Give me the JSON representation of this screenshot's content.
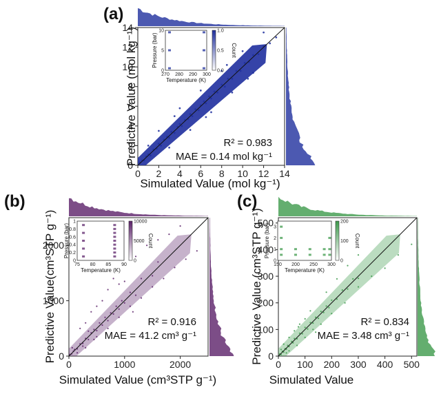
{
  "chart_data": [
    {
      "panel_label": "(a)",
      "type": "scatter",
      "xlabel": "Simulated Value (mol kg⁻¹)",
      "ylabel": "Predictive Value (mol kg⁻¹)",
      "xlim": [
        0,
        14
      ],
      "ylim": [
        0,
        14
      ],
      "xticks": [
        0,
        2,
        4,
        6,
        8,
        10,
        12,
        14
      ],
      "yticks": [
        0,
        2,
        4,
        6,
        8,
        10,
        12,
        14
      ],
      "color": "#1f2f9e",
      "r2_text": "R² = 0.983",
      "mae_text": "MAE = 0.14 mol kg⁻¹",
      "points": [
        [
          0.2,
          0.3
        ],
        [
          0.4,
          0.5
        ],
        [
          0.6,
          0.5
        ],
        [
          0.8,
          0.9
        ],
        [
          1.0,
          1.1
        ],
        [
          1.2,
          1.0
        ],
        [
          1.5,
          1.6
        ],
        [
          1.8,
          1.7
        ],
        [
          2.0,
          2.2
        ],
        [
          2.2,
          2.0
        ],
        [
          2.5,
          2.6
        ],
        [
          2.8,
          2.9
        ],
        [
          3.0,
          2.8
        ],
        [
          3.2,
          3.4
        ],
        [
          3.5,
          3.3
        ],
        [
          3.8,
          3.9
        ],
        [
          4.0,
          4.2
        ],
        [
          4.2,
          4.0
        ],
        [
          4.5,
          4.6
        ],
        [
          4.8,
          4.7
        ],
        [
          5.0,
          5.2
        ],
        [
          5.2,
          5.0
        ],
        [
          5.5,
          5.7
        ],
        [
          5.8,
          5.6
        ],
        [
          6.0,
          6.1
        ],
        [
          6.3,
          6.5
        ],
        [
          6.5,
          6.3
        ],
        [
          6.8,
          7.0
        ],
        [
          7.0,
          6.8
        ],
        [
          7.3,
          7.5
        ],
        [
          7.6,
          7.4
        ],
        [
          8.0,
          8.2
        ],
        [
          8.3,
          8.0
        ],
        [
          8.6,
          8.8
        ],
        [
          9.0,
          8.8
        ],
        [
          9.4,
          9.6
        ],
        [
          9.8,
          9.6
        ],
        [
          10.2,
          10.4
        ],
        [
          10.6,
          10.5
        ],
        [
          11.0,
          11.2
        ],
        [
          11.5,
          11.3
        ],
        [
          12.0,
          12.1
        ],
        [
          12.6,
          12.4
        ],
        [
          13.2,
          13.0
        ],
        [
          1.0,
          2.0
        ],
        [
          2.0,
          3.5
        ],
        [
          3.0,
          1.8
        ],
        [
          4.0,
          5.8
        ],
        [
          5.0,
          3.6
        ],
        [
          6.0,
          7.6
        ],
        [
          7.0,
          5.4
        ],
        [
          8.0,
          9.6
        ],
        [
          9.0,
          7.4
        ],
        [
          10.0,
          11.6
        ],
        [
          11.0,
          9.4
        ],
        [
          3.5,
          5.0
        ],
        [
          6.5,
          4.9
        ],
        [
          8.5,
          10.2
        ],
        [
          10.5,
          8.8
        ],
        [
          12.0,
          13.5
        ]
      ],
      "inset": {
        "xlabel": "Temperature (K)",
        "ylabel": "Pressure (bar)",
        "colorbar_label": "Count",
        "xlim": [
          270,
          300
        ],
        "ylim": [
          0,
          10
        ],
        "xticks": [
          270,
          280,
          290,
          300
        ],
        "yticks": [
          0,
          5,
          10
        ],
        "cbar_ticks": [
          "0.0",
          "0.5",
          "1.0"
        ],
        "cells": [
          [
            273,
            9.5
          ],
          [
            273,
            5
          ],
          [
            273,
            0.5
          ],
          [
            298,
            9.5
          ],
          [
            298,
            5
          ],
          [
            298,
            0.5
          ]
        ]
      }
    },
    {
      "panel_label": "(b)",
      "type": "scatter",
      "xlabel": "Simulated Value (cm³STP g⁻¹)",
      "ylabel": "Predictive Value(cm³STP g⁻¹)",
      "xlim": [
        0,
        2500
      ],
      "ylim": [
        0,
        2500
      ],
      "xticks": [
        0,
        1000,
        2000
      ],
      "yticks": [
        0,
        1000,
        2000
      ],
      "color": "#5b2169",
      "r2_text": "R² = 0.916",
      "mae_text": "MAE = 41.2 cm³ g⁻¹",
      "points": [
        [
          20,
          30
        ],
        [
          50,
          40
        ],
        [
          80,
          90
        ],
        [
          100,
          120
        ],
        [
          150,
          130
        ],
        [
          200,
          220
        ],
        [
          250,
          230
        ],
        [
          300,
          320
        ],
        [
          350,
          300
        ],
        [
          400,
          420
        ],
        [
          450,
          480
        ],
        [
          500,
          460
        ],
        [
          550,
          600
        ],
        [
          600,
          560
        ],
        [
          650,
          700
        ],
        [
          700,
          640
        ],
        [
          750,
          780
        ],
        [
          800,
          760
        ],
        [
          850,
          900
        ],
        [
          900,
          850
        ],
        [
          950,
          1000
        ],
        [
          1000,
          960
        ],
        [
          1100,
          1150
        ],
        [
          1200,
          1100
        ],
        [
          1300,
          1400
        ],
        [
          1500,
          1450
        ],
        [
          200,
          500
        ],
        [
          300,
          600
        ],
        [
          400,
          800
        ],
        [
          500,
          900
        ],
        [
          600,
          1000
        ],
        [
          700,
          1200
        ],
        [
          800,
          1400
        ],
        [
          900,
          1300
        ],
        [
          300,
          150
        ],
        [
          500,
          350
        ],
        [
          700,
          500
        ],
        [
          900,
          700
        ],
        [
          1100,
          900
        ],
        [
          1300,
          1050
        ],
        [
          1500,
          1250
        ],
        [
          1700,
          1400
        ],
        [
          1900,
          1600
        ],
        [
          2100,
          1750
        ],
        [
          2300,
          1900
        ],
        [
          1200,
          1800
        ],
        [
          1400,
          2000
        ],
        [
          1600,
          2100
        ],
        [
          1800,
          2200
        ],
        [
          2000,
          2350
        ],
        [
          150,
          60
        ],
        [
          250,
          180
        ],
        [
          350,
          450
        ],
        [
          450,
          300
        ],
        [
          60,
          150
        ],
        [
          1000,
          1350
        ],
        [
          1150,
          800
        ],
        [
          1600,
          1700
        ]
      ],
      "inset": {
        "xlabel": "Temperature (K)",
        "ylabel": "Pressure (bar)",
        "colorbar_label": "Count",
        "xlim": [
          75,
          90
        ],
        "ylim": [
          0,
          1.0
        ],
        "xticks": [
          75,
          80,
          85,
          90
        ],
        "yticks": [
          0.0,
          0.2,
          0.4,
          0.6,
          0.8,
          1.0
        ],
        "cbar_ticks": [
          "0",
          "5000",
          "10000"
        ],
        "cells": [
          [
            77,
            0.1
          ],
          [
            77,
            0.3
          ],
          [
            77,
            0.5
          ],
          [
            77,
            0.7
          ],
          [
            77,
            0.9
          ],
          [
            87,
            0.1
          ],
          [
            87,
            0.2
          ],
          [
            87,
            0.3
          ],
          [
            87,
            0.4
          ],
          [
            87,
            0.5
          ],
          [
            87,
            0.6
          ],
          [
            87,
            0.7
          ],
          [
            87,
            0.8
          ],
          [
            87,
            0.9
          ]
        ]
      }
    },
    {
      "panel_label": "(c)",
      "type": "scatter",
      "xlabel": "Simulated Value",
      "ylabel": "Predictive Value (cm³STP g⁻¹)",
      "xlim": [
        0,
        520
      ],
      "ylim": [
        0,
        520
      ],
      "xticks": [
        0,
        100,
        200,
        300,
        400,
        500
      ],
      "yticks": [
        0,
        100,
        200,
        300,
        400,
        500
      ],
      "color": "#3d9a4b",
      "r2_text": "R² = 0.834",
      "mae_text": "MAE = 3.48 cm³ g⁻¹",
      "points": [
        [
          5,
          8
        ],
        [
          10,
          6
        ],
        [
          15,
          18
        ],
        [
          20,
          15
        ],
        [
          25,
          28
        ],
        [
          30,
          26
        ],
        [
          35,
          40
        ],
        [
          40,
          36
        ],
        [
          50,
          55
        ],
        [
          55,
          50
        ],
        [
          60,
          66
        ],
        [
          70,
          65
        ],
        [
          80,
          86
        ],
        [
          90,
          84
        ],
        [
          100,
          108
        ],
        [
          110,
          102
        ],
        [
          120,
          126
        ],
        [
          130,
          124
        ],
        [
          140,
          146
        ],
        [
          150,
          142
        ],
        [
          160,
          168
        ],
        [
          170,
          164
        ],
        [
          180,
          188
        ],
        [
          190,
          182
        ],
        [
          200,
          210
        ],
        [
          220,
          214
        ],
        [
          240,
          248
        ],
        [
          260,
          252
        ],
        [
          280,
          290
        ],
        [
          300,
          292
        ],
        [
          20,
          45
        ],
        [
          40,
          70
        ],
        [
          60,
          95
        ],
        [
          80,
          120
        ],
        [
          100,
          140
        ],
        [
          120,
          170
        ],
        [
          40,
          20
        ],
        [
          70,
          40
        ],
        [
          100,
          70
        ],
        [
          130,
          100
        ],
        [
          160,
          120
        ],
        [
          200,
          160
        ],
        [
          250,
          200
        ],
        [
          300,
          260
        ],
        [
          350,
          300
        ],
        [
          400,
          330
        ],
        [
          450,
          380
        ],
        [
          500,
          420
        ],
        [
          180,
          240
        ],
        [
          220,
          290
        ],
        [
          260,
          340
        ],
        [
          300,
          380
        ],
        [
          10,
          25
        ],
        [
          30,
          12
        ],
        [
          75,
          110
        ],
        [
          140,
          90
        ]
      ],
      "inset": {
        "xlabel": "Temperature (K)",
        "ylabel": "Pressure (bar)",
        "colorbar_label": "Count",
        "xlim": [
          150,
          300
        ],
        "ylim": [
          0,
          3.5
        ],
        "xticks": [
          150,
          200,
          250,
          300
        ],
        "yticks": [
          0,
          1,
          2,
          3
        ],
        "cbar_ticks": [
          "0",
          "100",
          "200"
        ],
        "cells": [
          [
            160,
            0.5
          ],
          [
            160,
            1.0
          ],
          [
            160,
            2.0
          ],
          [
            160,
            3.0
          ],
          [
            200,
            0.5
          ],
          [
            200,
            1.0
          ],
          [
            240,
            0.5
          ],
          [
            240,
            1.0
          ],
          [
            280,
            0.5
          ],
          [
            280,
            1.0
          ],
          [
            295,
            0.5
          ],
          [
            295,
            1.0
          ],
          [
            295,
            2.0
          ]
        ]
      }
    }
  ]
}
